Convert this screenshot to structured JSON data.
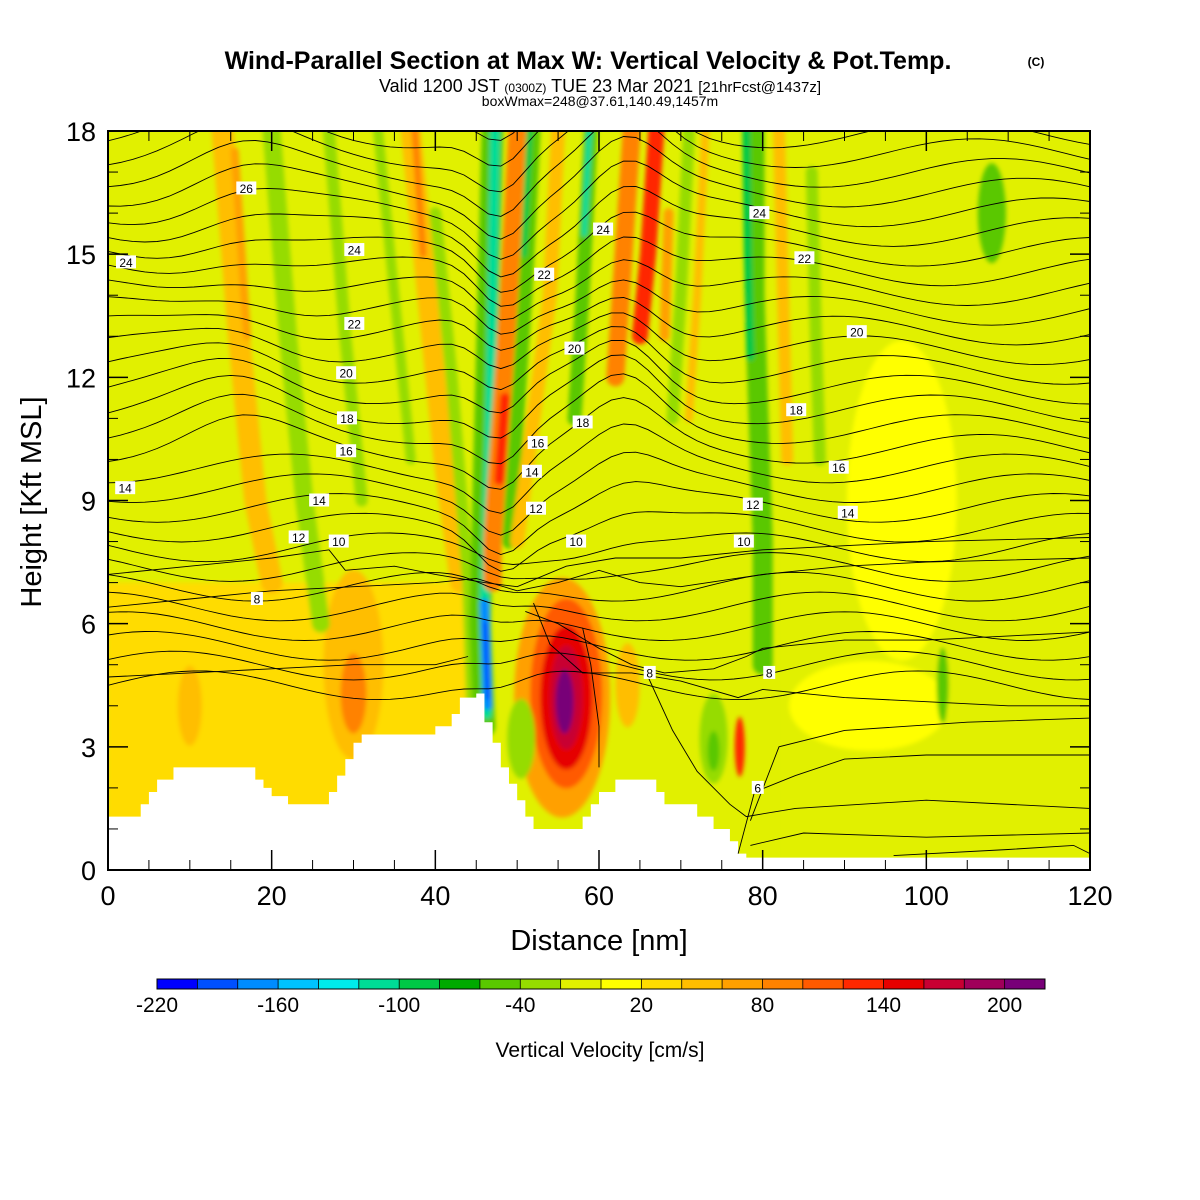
{
  "chart_data": {
    "type": "heatmap",
    "title": "Wind-Parallel Section at Max W: Vertical Velocity & Pot.Temp.",
    "title_mark": "(C)",
    "subtitle": {
      "valid_prefix": "Valid 1200 JST",
      "utc": "(0300Z)",
      "date": "TUE 23 Mar 2021",
      "forecast": "[21hrFcst@1437z]"
    },
    "box_info": "boxWmax=248@37.61,140.49,1457m",
    "xlabel": "Distance [nm]",
    "ylabel": "Height [Kft MSL]",
    "xlim": [
      0,
      120
    ],
    "ylim": [
      0,
      18
    ],
    "x_ticks": [
      "0",
      "20",
      "40",
      "60",
      "80",
      "100",
      "120"
    ],
    "y_ticks": [
      "0",
      "3",
      "6",
      "9",
      "12",
      "15",
      "18"
    ],
    "colorbar": {
      "title": "Vertical Velocity [cm/s]",
      "min": -220,
      "max": 220,
      "step": 20,
      "labels": [
        "-220",
        "-160",
        "-100",
        "-40",
        "20",
        "80",
        "140",
        "200"
      ],
      "colors": [
        "#0000ff",
        "#0050ff",
        "#008cff",
        "#00c3ff",
        "#00ebeb",
        "#00dc96",
        "#00c846",
        "#00aa00",
        "#5ac800",
        "#96dc00",
        "#e1f000",
        "#ffff00",
        "#ffdc00",
        "#ffbe00",
        "#ffa000",
        "#ff8200",
        "#ff5a00",
        "#ff2800",
        "#e60000",
        "#c80032",
        "#a0005a",
        "#780078"
      ]
    },
    "contour_labels": [
      {
        "text": "26",
        "x": 16.9,
        "y": 16.6
      },
      {
        "text": "24",
        "x": 2.2,
        "y": 14.8
      },
      {
        "text": "24",
        "x": 30.1,
        "y": 15.1
      },
      {
        "text": "24",
        "x": 60.5,
        "y": 15.6
      },
      {
        "text": "24",
        "x": 79.6,
        "y": 16.0
      },
      {
        "text": "22",
        "x": 53.3,
        "y": 14.5
      },
      {
        "text": "22",
        "x": 85.1,
        "y": 14.9
      },
      {
        "text": "22",
        "x": 30.1,
        "y": 13.3
      },
      {
        "text": "20",
        "x": 57.0,
        "y": 12.7
      },
      {
        "text": "20",
        "x": 91.5,
        "y": 13.1
      },
      {
        "text": "20",
        "x": 29.1,
        "y": 12.1
      },
      {
        "text": "18",
        "x": 29.2,
        "y": 11.0
      },
      {
        "text": "18",
        "x": 58.0,
        "y": 10.9
      },
      {
        "text": "18",
        "x": 84.1,
        "y": 11.2
      },
      {
        "text": "16",
        "x": 29.1,
        "y": 10.2
      },
      {
        "text": "16",
        "x": 52.5,
        "y": 10.4
      },
      {
        "text": "16",
        "x": 89.3,
        "y": 9.8
      },
      {
        "text": "14",
        "x": 2.1,
        "y": 9.3
      },
      {
        "text": "14",
        "x": 25.8,
        "y": 9.0
      },
      {
        "text": "14",
        "x": 51.8,
        "y": 9.7
      },
      {
        "text": "14",
        "x": 90.4,
        "y": 8.7
      },
      {
        "text": "12",
        "x": 23.3,
        "y": 8.1
      },
      {
        "text": "12",
        "x": 52.3,
        "y": 8.8
      },
      {
        "text": "12",
        "x": 78.8,
        "y": 8.9
      },
      {
        "text": "10",
        "x": 28.2,
        "y": 8.0
      },
      {
        "text": "10",
        "x": 57.2,
        "y": 8.0
      },
      {
        "text": "10",
        "x": 77.7,
        "y": 8.0
      },
      {
        "text": "8",
        "x": 18.2,
        "y": 6.6
      },
      {
        "text": "8",
        "x": 66.2,
        "y": 4.8
      },
      {
        "text": "8",
        "x": 80.8,
        "y": 4.8
      },
      {
        "text": "6",
        "x": 79.4,
        "y": 2.0
      }
    ]
  }
}
